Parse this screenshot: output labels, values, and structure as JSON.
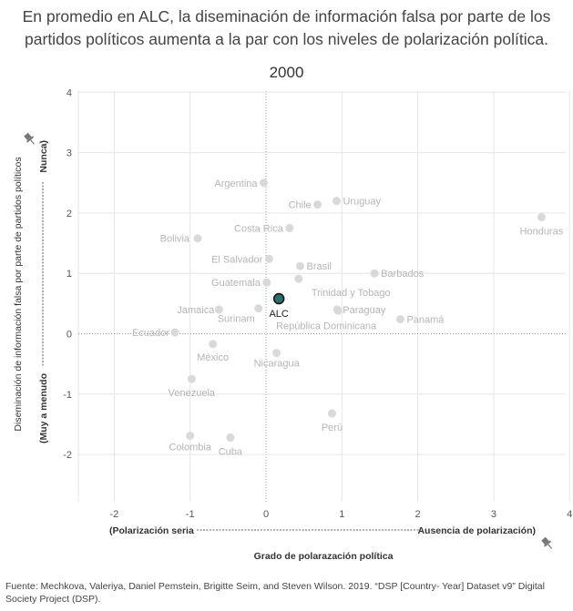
{
  "title_line1": "En promedio en ALC, la diseminación de información falsa por parte de los",
  "title_line2": "partidos políticos aumenta a la par con los niveles de polarización política.",
  "source_text": "Fuente: Mechkova, Valeriya, Daniel Pemstein, Brigitte Seim, and Steven Wilson. 2019. “DSP [Country- Year] Dataset v9” Digital Society Project (DSP).",
  "colors": {
    "point": "#d9d9d9",
    "label": "#b5b5b5",
    "highlight": "#2e6e6a",
    "grid": "#e6e6e6",
    "zero": "#999999"
  },
  "chart_data": {
    "type": "scatter",
    "title": "2000",
    "xlim": [
      -2.5,
      4
    ],
    "ylim": [
      -2.8,
      4.2
    ],
    "xticks": [
      "-2",
      "-1",
      "0",
      "1",
      "2",
      "3",
      "4"
    ],
    "yticks": [
      "4",
      "3",
      "2",
      "1",
      "0",
      "-1",
      "-2"
    ],
    "xlabel_left": "(Polarización seria",
    "xlabel_right": "Ausencia de polarización)",
    "xlabel": "Grado de polarazación política",
    "ylabel_top": "Nunca)",
    "ylabel_bottom": "(Muy a menudo",
    "ylabel": "Diseminación de información falsa por parte de partidos políticos",
    "points": [
      {
        "name": "Argentina",
        "x": -0.03,
        "y": 2.5
      },
      {
        "name": "Chile",
        "x": 0.68,
        "y": 2.14
      },
      {
        "name": "Uruguay",
        "x": 0.93,
        "y": 2.2
      },
      {
        "name": "Costa Rica",
        "x": 0.31,
        "y": 1.75
      },
      {
        "name": "Honduras",
        "x": 3.63,
        "y": 1.93
      },
      {
        "name": "Bolivia",
        "x": -0.9,
        "y": 1.58
      },
      {
        "name": "El Salvador",
        "x": 0.04,
        "y": 1.24
      },
      {
        "name": "Brasil",
        "x": 0.45,
        "y": 1.12
      },
      {
        "name": "Barbados",
        "x": 1.43,
        "y": 1.0
      },
      {
        "name": "Guatemala",
        "x": 0.01,
        "y": 0.85
      },
      {
        "name": "Trinidad y Tobago",
        "x": 0.43,
        "y": 0.91
      },
      {
        "name": "Jamaica",
        "x": -0.62,
        "y": 0.4
      },
      {
        "name": "Surinam",
        "x": -0.1,
        "y": 0.42
      },
      {
        "name": "Paraguay",
        "x": 0.94,
        "y": 0.4
      },
      {
        "name": "República Dominicana",
        "x": 0.95,
        "y": 0.38
      },
      {
        "name": "Panamá",
        "x": 1.77,
        "y": 0.24
      },
      {
        "name": "Ecuador",
        "x": -1.2,
        "y": 0.02
      },
      {
        "name": "México",
        "x": -0.7,
        "y": -0.17
      },
      {
        "name": "Nicaragua",
        "x": 0.14,
        "y": -0.32
      },
      {
        "name": "Venezuela",
        "x": -0.98,
        "y": -0.75
      },
      {
        "name": "Perú",
        "x": 0.87,
        "y": -1.32
      },
      {
        "name": "Colombia",
        "x": -1.0,
        "y": -1.69
      },
      {
        "name": "Cuba",
        "x": -0.47,
        "y": -1.72
      }
    ],
    "highlight": {
      "name": "ALC",
      "x": 0.17,
      "y": 0.58
    }
  }
}
